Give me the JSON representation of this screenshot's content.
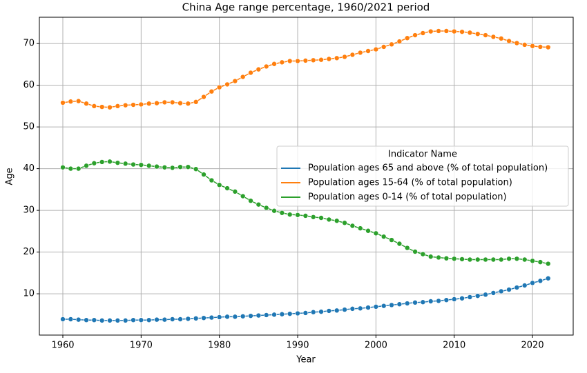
{
  "chart_data": {
    "type": "line",
    "title": "China Age range percentage, 1960/2021 period",
    "x_label": "Year",
    "y_label": "Age",
    "legend_title": "Indicator Name",
    "legend_loc": "center right",
    "grid": true,
    "markers": true,
    "x": [
      1960,
      1961,
      1962,
      1963,
      1964,
      1965,
      1966,
      1967,
      1968,
      1969,
      1970,
      1971,
      1972,
      1973,
      1974,
      1975,
      1976,
      1977,
      1978,
      1979,
      1980,
      1981,
      1982,
      1983,
      1984,
      1985,
      1986,
      1987,
      1988,
      1989,
      1990,
      1991,
      1992,
      1993,
      1994,
      1995,
      1996,
      1997,
      1998,
      1999,
      2000,
      2001,
      2002,
      2003,
      2004,
      2005,
      2006,
      2007,
      2008,
      2009,
      2010,
      2011,
      2012,
      2013,
      2014,
      2015,
      2016,
      2017,
      2018,
      2019,
      2020,
      2021,
      2022
    ],
    "series": [
      {
        "name": "Population ages 65 and above (% of total population)",
        "color": "#1f77b4",
        "values": [
          3.9,
          3.9,
          3.8,
          3.7,
          3.7,
          3.6,
          3.6,
          3.6,
          3.6,
          3.7,
          3.7,
          3.7,
          3.8,
          3.8,
          3.9,
          3.9,
          4.0,
          4.1,
          4.2,
          4.3,
          4.4,
          4.5,
          4.5,
          4.6,
          4.7,
          4.8,
          4.9,
          5.0,
          5.1,
          5.2,
          5.3,
          5.4,
          5.6,
          5.7,
          5.9,
          6.0,
          6.2,
          6.4,
          6.5,
          6.7,
          6.9,
          7.1,
          7.3,
          7.5,
          7.7,
          7.9,
          8.0,
          8.2,
          8.3,
          8.5,
          8.7,
          8.9,
          9.2,
          9.5,
          9.8,
          10.2,
          10.6,
          11.0,
          11.5,
          12.0,
          12.6,
          13.1,
          13.7
        ]
      },
      {
        "name": "Population ages 15-64 (% of total population)",
        "color": "#ff7f0e",
        "values": [
          55.8,
          56.1,
          56.2,
          55.6,
          55.0,
          54.8,
          54.7,
          55.0,
          55.2,
          55.3,
          55.4,
          55.6,
          55.7,
          55.9,
          55.9,
          55.7,
          55.6,
          56.0,
          57.2,
          58.5,
          59.5,
          60.2,
          61.0,
          62.0,
          63.0,
          63.8,
          64.5,
          65.1,
          65.5,
          65.8,
          65.8,
          65.9,
          66.0,
          66.1,
          66.3,
          66.5,
          66.8,
          67.3,
          67.8,
          68.2,
          68.6,
          69.2,
          69.8,
          70.5,
          71.3,
          72.0,
          72.5,
          72.9,
          73.0,
          73.0,
          72.9,
          72.8,
          72.6,
          72.3,
          72.0,
          71.6,
          71.2,
          70.6,
          70.1,
          69.7,
          69.4,
          69.2,
          69.1
        ]
      },
      {
        "name": "Population ages 0-14 (% of total population)",
        "color": "#2ca02c",
        "values": [
          40.3,
          40.0,
          40.0,
          40.7,
          41.3,
          41.6,
          41.7,
          41.4,
          41.2,
          41.0,
          40.9,
          40.7,
          40.5,
          40.3,
          40.2,
          40.4,
          40.4,
          39.9,
          38.6,
          37.2,
          36.1,
          35.3,
          34.5,
          33.4,
          32.3,
          31.4,
          30.6,
          29.9,
          29.4,
          29.0,
          28.9,
          28.7,
          28.4,
          28.2,
          27.8,
          27.5,
          27.0,
          26.3,
          25.7,
          25.1,
          24.5,
          23.7,
          22.9,
          22.0,
          21.0,
          20.1,
          19.5,
          18.9,
          18.7,
          18.5,
          18.4,
          18.3,
          18.2,
          18.2,
          18.2,
          18.2,
          18.2,
          18.4,
          18.4,
          18.2,
          17.9,
          17.6,
          17.2
        ]
      }
    ],
    "xlim": [
      1957,
      2025.2
    ],
    "xticks": [
      1960,
      1970,
      1980,
      1990,
      2000,
      2010,
      2020
    ],
    "ylim": [
      0.1,
      76.3
    ],
    "yticks": [
      10,
      20,
      30,
      40,
      50,
      60,
      70
    ]
  }
}
